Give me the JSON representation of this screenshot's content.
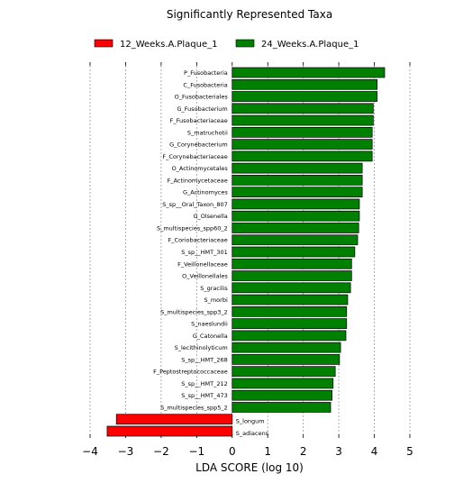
{
  "chart_data": {
    "type": "bar",
    "orientation": "horizontal",
    "title": "Significantly Represented Taxa",
    "xlabel": "LDA SCORE (log 10)",
    "ylabel": "",
    "xlim": [
      -4,
      5
    ],
    "xticks": [
      -4,
      -3,
      -2,
      -1,
      0,
      1,
      2,
      3,
      4,
      5
    ],
    "grid": "vertical dashed",
    "legend_placement": "top",
    "series": [
      {
        "name": "12_Weeks.A.Plaque_1",
        "color": "#ff0000"
      },
      {
        "name": "24_Weeks.A.Plaque_1",
        "color": "#008000"
      }
    ],
    "bars": [
      {
        "label": "P_Fusobacteria",
        "value": 4.29,
        "group": "24_Weeks.A.Plaque_1"
      },
      {
        "label": "C_Fusobacteria",
        "value": 4.08,
        "group": "24_Weeks.A.Plaque_1"
      },
      {
        "label": "O_Fusobacteriales",
        "value": 4.08,
        "group": "24_Weeks.A.Plaque_1"
      },
      {
        "label": "G_Fusobacterium",
        "value": 3.97,
        "group": "24_Weeks.A.Plaque_1"
      },
      {
        "label": "F_Fusobacteriaceae",
        "value": 3.97,
        "group": "24_Weeks.A.Plaque_1"
      },
      {
        "label": "S_matruchotii",
        "value": 3.94,
        "group": "24_Weeks.A.Plaque_1"
      },
      {
        "label": "G_Corynebacterium",
        "value": 3.94,
        "group": "24_Weeks.A.Plaque_1"
      },
      {
        "label": "F_Corynebacteriaceae",
        "value": 3.94,
        "group": "24_Weeks.A.Plaque_1"
      },
      {
        "label": "O_Actinomycetales",
        "value": 3.66,
        "group": "24_Weeks.A.Plaque_1"
      },
      {
        "label": "F_Actinomycetaceae",
        "value": 3.66,
        "group": "24_Weeks.A.Plaque_1"
      },
      {
        "label": "G_Actinomyces",
        "value": 3.66,
        "group": "24_Weeks.A.Plaque_1"
      },
      {
        "label": "S_sp__Oral_Taxon_807",
        "value": 3.58,
        "group": "24_Weeks.A.Plaque_1"
      },
      {
        "label": "G_Olsenella",
        "value": 3.58,
        "group": "24_Weeks.A.Plaque_1"
      },
      {
        "label": "S_multispecies_spp60_2",
        "value": 3.56,
        "group": "24_Weeks.A.Plaque_1"
      },
      {
        "label": "F_Coriobacteriaceae",
        "value": 3.53,
        "group": "24_Weeks.A.Plaque_1"
      },
      {
        "label": "S_sp__HMT_301",
        "value": 3.45,
        "group": "24_Weeks.A.Plaque_1"
      },
      {
        "label": "F_Veillonellaceae",
        "value": 3.36,
        "group": "24_Weeks.A.Plaque_1"
      },
      {
        "label": "O_Veillonellales",
        "value": 3.36,
        "group": "24_Weeks.A.Plaque_1"
      },
      {
        "label": "S_gracilis",
        "value": 3.33,
        "group": "24_Weeks.A.Plaque_1"
      },
      {
        "label": "S_morbi",
        "value": 3.25,
        "group": "24_Weeks.A.Plaque_1"
      },
      {
        "label": "S_multispecies_spp3_2",
        "value": 3.22,
        "group": "24_Weeks.A.Plaque_1"
      },
      {
        "label": "S_naeslundii",
        "value": 3.22,
        "group": "24_Weeks.A.Plaque_1"
      },
      {
        "label": "G_Catonella",
        "value": 3.2,
        "group": "24_Weeks.A.Plaque_1"
      },
      {
        "label": "S_lecithinolyticum",
        "value": 3.05,
        "group": "24_Weeks.A.Plaque_1"
      },
      {
        "label": "S_sp__HMT_268",
        "value": 3.02,
        "group": "24_Weeks.A.Plaque_1"
      },
      {
        "label": "F_Peptostreptococcaceae",
        "value": 2.9,
        "group": "24_Weeks.A.Plaque_1"
      },
      {
        "label": "S_sp__HMT_212",
        "value": 2.84,
        "group": "24_Weeks.A.Plaque_1"
      },
      {
        "label": "S_sp__HMT_473",
        "value": 2.81,
        "group": "24_Weeks.A.Plaque_1"
      },
      {
        "label": "S_multispecies_spp5_2",
        "value": 2.77,
        "group": "24_Weeks.A.Plaque_1"
      },
      {
        "label": "S_longum",
        "value": -3.26,
        "group": "12_Weeks.A.Plaque_1"
      },
      {
        "label": "S_adiacens",
        "value": -3.52,
        "group": "12_Weeks.A.Plaque_1"
      }
    ]
  }
}
